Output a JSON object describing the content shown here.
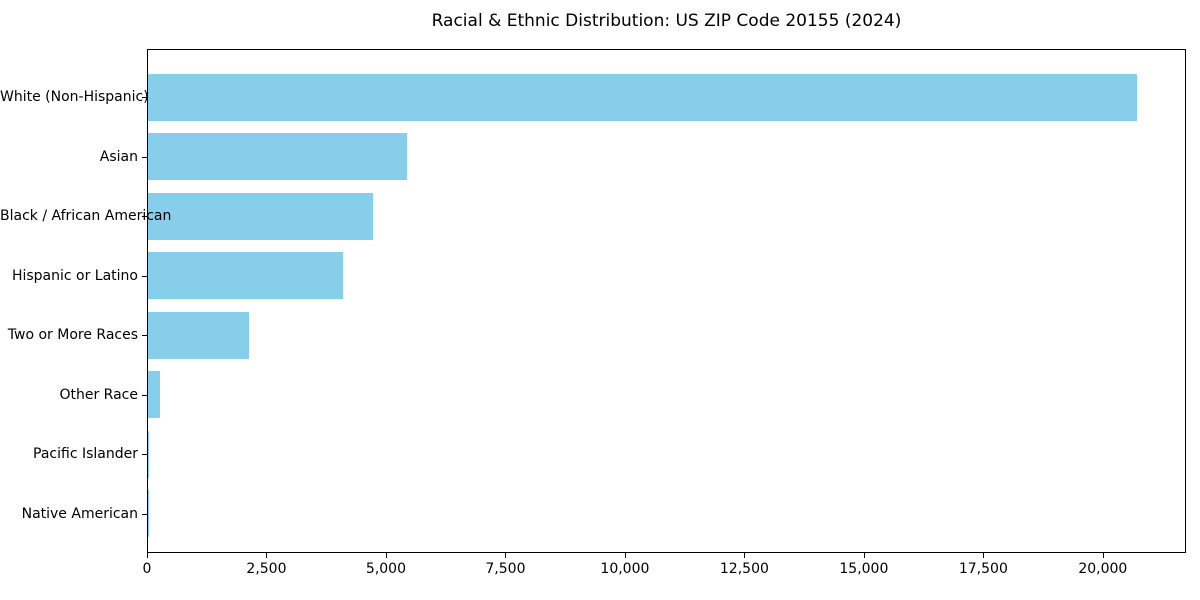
{
  "chart_data": {
    "type": "bar",
    "orientation": "horizontal",
    "title": "Racial & Ethnic Distribution: US ZIP Code 20155 (2024)",
    "categories": [
      "White (Non-Hispanic)",
      "Asian",
      "Black / African American",
      "Hispanic or Latino",
      "Two or More Races",
      "Other Race",
      "Pacific Islander",
      "Native American"
    ],
    "values": [
      20700,
      5410,
      4710,
      4080,
      2110,
      260,
      30,
      10
    ],
    "bar_color": "#87CEEB",
    "xlabel": "",
    "ylabel": "",
    "xlim": [
      0,
      21740
    ],
    "x_ticks": [
      0,
      2500,
      5000,
      7500,
      10000,
      12500,
      15000,
      17500,
      20000
    ],
    "x_tick_labels": [
      "0",
      "2,500",
      "5,000",
      "7,500",
      "10,000",
      "12,500",
      "15,000",
      "17,500",
      "20,000"
    ],
    "grid": false,
    "legend": null,
    "plot_background": "#ffffff",
    "spine_color": "#000000",
    "text_color": "#000000"
  }
}
